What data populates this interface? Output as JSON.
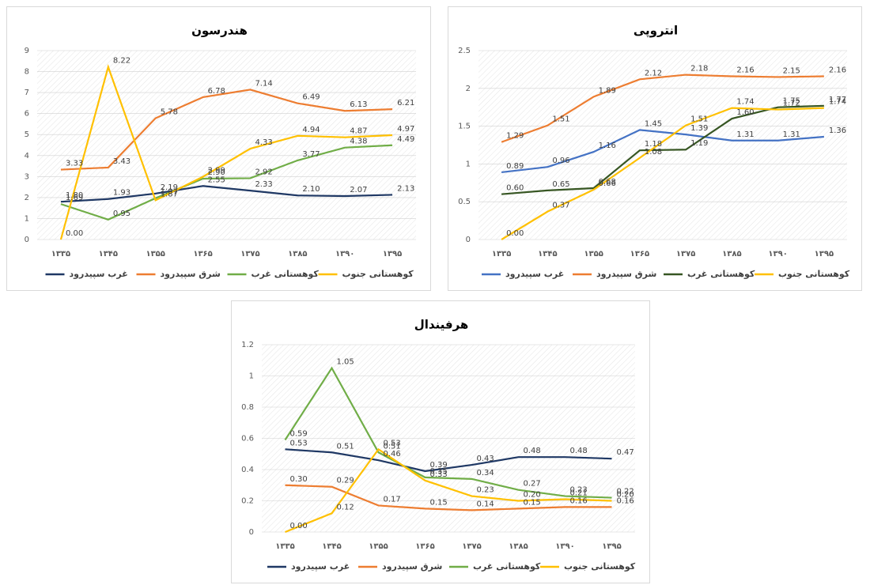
{
  "chart_data": [
    {
      "type": "line",
      "title": "هندرسون",
      "categories": [
        "۱۳۳۵",
        "۱۳۴۵",
        "۱۳۵۵",
        "۱۳۶۵",
        "۱۳۷۵",
        "۱۳۸۵",
        "۱۳۹۰",
        "۱۳۹۵"
      ],
      "ylim": [
        0,
        9
      ],
      "yticks": [
        0,
        1,
        2,
        3,
        4,
        5,
        6,
        7,
        8,
        9
      ],
      "grid": true,
      "legend": "bottom",
      "series": [
        {
          "name": "غرب سپیدرود",
          "color": "#1f3864",
          "values": [
            1.8,
            1.93,
            2.19,
            2.55,
            2.33,
            2.1,
            2.07,
            2.13
          ],
          "value_labels": [
            "1.80",
            "1.93",
            "2.19",
            "2.55",
            "2.33",
            "2.10",
            "2.07",
            "2.13"
          ]
        },
        {
          "name": "شرق سپیدرود",
          "color": "#ed7d31",
          "values": [
            3.33,
            3.43,
            5.78,
            6.78,
            7.14,
            6.49,
            6.13,
            6.21
          ],
          "value_labels": [
            "3.33",
            "3.43",
            "5.78",
            "6.78",
            "7.14",
            "6.49",
            "6.13",
            "6.21"
          ]
        },
        {
          "name": "کوهستانی غرب",
          "color": "#70ad47",
          "values": [
            1.69,
            0.95,
            1.97,
            2.9,
            2.92,
            3.77,
            4.38,
            4.49
          ],
          "value_labels": [
            "1.69",
            "0.95",
            "1.97",
            "2.90",
            "2.92",
            "3.77",
            "4.38",
            "4.49"
          ]
        },
        {
          "name": "کوهستانی جنوب",
          "color": "#ffc000",
          "values": [
            0,
            8.22,
            1.87,
            2.99,
            4.33,
            4.94,
            4.87,
            4.97
          ],
          "value_labels": [
            "0.00",
            "8.22",
            "1.87",
            "2.99",
            "4.33",
            "4.94",
            "4.87",
            "4.97"
          ]
        }
      ]
    },
    {
      "type": "line",
      "title": "انتروپی",
      "categories": [
        "۱۳۳۵",
        "۱۳۴۵",
        "۱۳۵۵",
        "۱۳۶۵",
        "۱۳۷۵",
        "۱۳۸۵",
        "۱۳۹۰",
        "۱۳۹۵"
      ],
      "ylim": [
        0,
        2.5
      ],
      "yticks": [
        0,
        0.5,
        1,
        1.5,
        2,
        2.5
      ],
      "grid": true,
      "legend": "bottom",
      "series": [
        {
          "name": "غرب سپیدرود",
          "color": "#4472c4",
          "values": [
            0.89,
            0.96,
            1.16,
            1.45,
            1.39,
            1.31,
            1.31,
            1.36
          ],
          "value_labels": [
            "0.89",
            "0.96",
            "1.16",
            "1.45",
            "1.39",
            "1.31",
            "1.31",
            "1.36"
          ]
        },
        {
          "name": "شرق سپیدرود",
          "color": "#ed7d31",
          "values": [
            1.29,
            1.51,
            1.89,
            2.12,
            2.18,
            2.16,
            2.15,
            2.16
          ],
          "value_labels": [
            "1.29",
            "1.51",
            "1.89",
            "2.12",
            "2.18",
            "2.16",
            "2.15",
            "2.16"
          ]
        },
        {
          "name": "کوهستانی غرب",
          "color": "#375623",
          "values": [
            0.6,
            0.65,
            0.68,
            1.18,
            1.19,
            1.6,
            1.75,
            1.77
          ],
          "value_labels": [
            "0.60",
            "0.65",
            "0.68",
            "1.18",
            "1.19",
            "1.60",
            "1.75",
            "1.77"
          ]
        },
        {
          "name": "کوهستانی جنوب",
          "color": "#ffc000",
          "values": [
            0,
            0.37,
            0.66,
            1.08,
            1.51,
            1.74,
            1.72,
            1.74
          ],
          "value_labels": [
            "0.00",
            "0.37",
            "0.66",
            "1.08",
            "1.51",
            "1.74",
            "1.72",
            "1.74"
          ]
        }
      ]
    },
    {
      "type": "line",
      "title": "هرفیندال",
      "categories": [
        "۱۳۳۵",
        "۱۳۴۵",
        "۱۳۵۵",
        "۱۳۶۵",
        "۱۳۷۵",
        "۱۳۸۵",
        "۱۳۹۰",
        "۱۳۹۵"
      ],
      "ylim": [
        0,
        1.2
      ],
      "yticks": [
        0,
        0.2,
        0.4,
        0.6,
        0.8,
        1,
        1.2
      ],
      "grid": true,
      "legend": "bottom",
      "series": [
        {
          "name": "غرب سپیدرود",
          "color": "#1f3864",
          "values": [
            0.53,
            0.51,
            0.46,
            0.39,
            0.43,
            0.48,
            0.48,
            0.47
          ],
          "value_labels": [
            "0.53",
            "0.51",
            "0.46",
            "0.39",
            "0.43",
            "0.48",
            "0.48",
            "0.47"
          ]
        },
        {
          "name": "شرق سپیدرود",
          "color": "#ed7d31",
          "values": [
            0.3,
            0.29,
            0.17,
            0.15,
            0.14,
            0.15,
            0.16,
            0.16
          ],
          "value_labels": [
            "0.30",
            "0.29",
            "0.17",
            "0.15",
            "0.14",
            "0.15",
            "0.16",
            "0.16"
          ]
        },
        {
          "name": "کوهستانی غرب",
          "color": "#70ad47",
          "values": [
            0.59,
            1.05,
            0.51,
            0.35,
            0.34,
            0.27,
            0.23,
            0.22
          ],
          "value_labels": [
            "0.59",
            "1.05",
            "0.51",
            "0.35",
            "0.34",
            "0.27",
            "0.23",
            "0.22"
          ]
        },
        {
          "name": "کوهستانی جنوب",
          "color": "#ffc000",
          "values": [
            0,
            0.12,
            0.53,
            0.33,
            0.23,
            0.2,
            0.21,
            0.2
          ],
          "value_labels": [
            "0.00",
            "0.12",
            "0.53",
            "0.33",
            "0.23",
            "0.20",
            "0.21",
            "0.20"
          ]
        }
      ]
    }
  ]
}
